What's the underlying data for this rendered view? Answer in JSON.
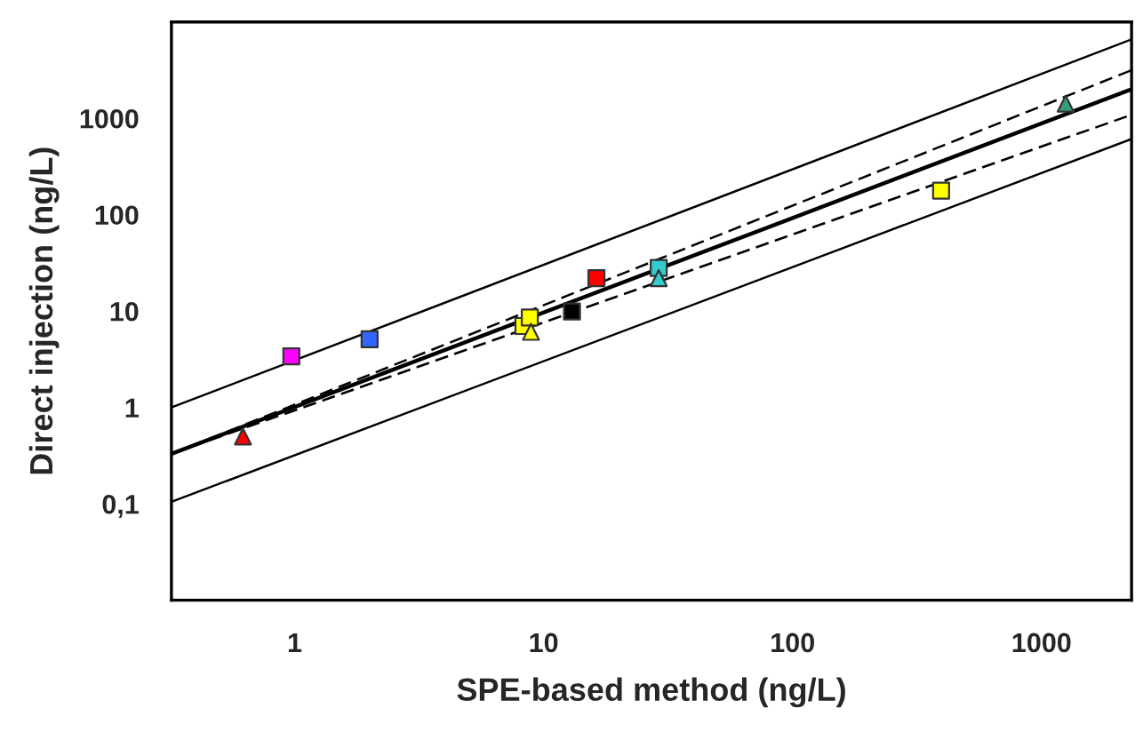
{
  "chart_data": {
    "type": "scatter",
    "xlabel": "SPE-based method (ng/L)",
    "ylabel": "Direct injection (ng/L)",
    "log": "xy",
    "xlim": [
      0.32,
      2300
    ],
    "ylim": [
      0.01,
      10000
    ],
    "xticks": [
      1,
      10,
      100,
      1000
    ],
    "yticks": [
      {
        "value": 0.1,
        "label": "0,1"
      },
      1,
      10,
      100,
      1000
    ],
    "grid": false,
    "legend": false,
    "series": [
      {
        "marker": "square",
        "x": [
          0.97,
          2.0,
          8.3,
          8.8,
          13,
          16.3,
          29,
          395
        ],
        "values": [
          3.4,
          5.1,
          7.0,
          8.6,
          9.9,
          22,
          28,
          178
        ],
        "colors": [
          "#ff00ff",
          "#3366ff",
          "#ffff00",
          "#ffff00",
          "#000000",
          "#ff0000",
          "#33cccc",
          "#ffff00"
        ]
      },
      {
        "marker": "triangle",
        "x": [
          0.62,
          8.9,
          29,
          1250
        ],
        "values": [
          0.5,
          6.1,
          22,
          1420
        ],
        "colors": [
          "#ff0000",
          "#ffff00",
          "#33cccc",
          "#33a07a"
        ]
      },
      {
        "type": "line",
        "color": "#000000",
        "line_style": "solid",
        "x": [
          0.32,
          2300
        ],
        "values": [
          0.33,
          2000
        ]
      },
      {
        "type": "line",
        "color": "#000000",
        "line_style": "solid",
        "x": [
          0.32,
          2300
        ],
        "values": [
          1.0,
          6600
        ]
      },
      {
        "type": "line",
        "color": "#000000",
        "line_style": "solid",
        "x": [
          0.32,
          2300
        ],
        "values": [
          0.105,
          610
        ]
      },
      {
        "type": "line",
        "color": "#000000",
        "line_style": "dashed",
        "x": [
          0.32,
          2300
        ],
        "values": [
          0.33,
          3160
        ]
      },
      {
        "type": "line",
        "color": "#000000",
        "line_style": "dashed",
        "x": [
          0.32,
          2300
        ],
        "values": [
          0.33,
          1090
        ]
      }
    ]
  }
}
